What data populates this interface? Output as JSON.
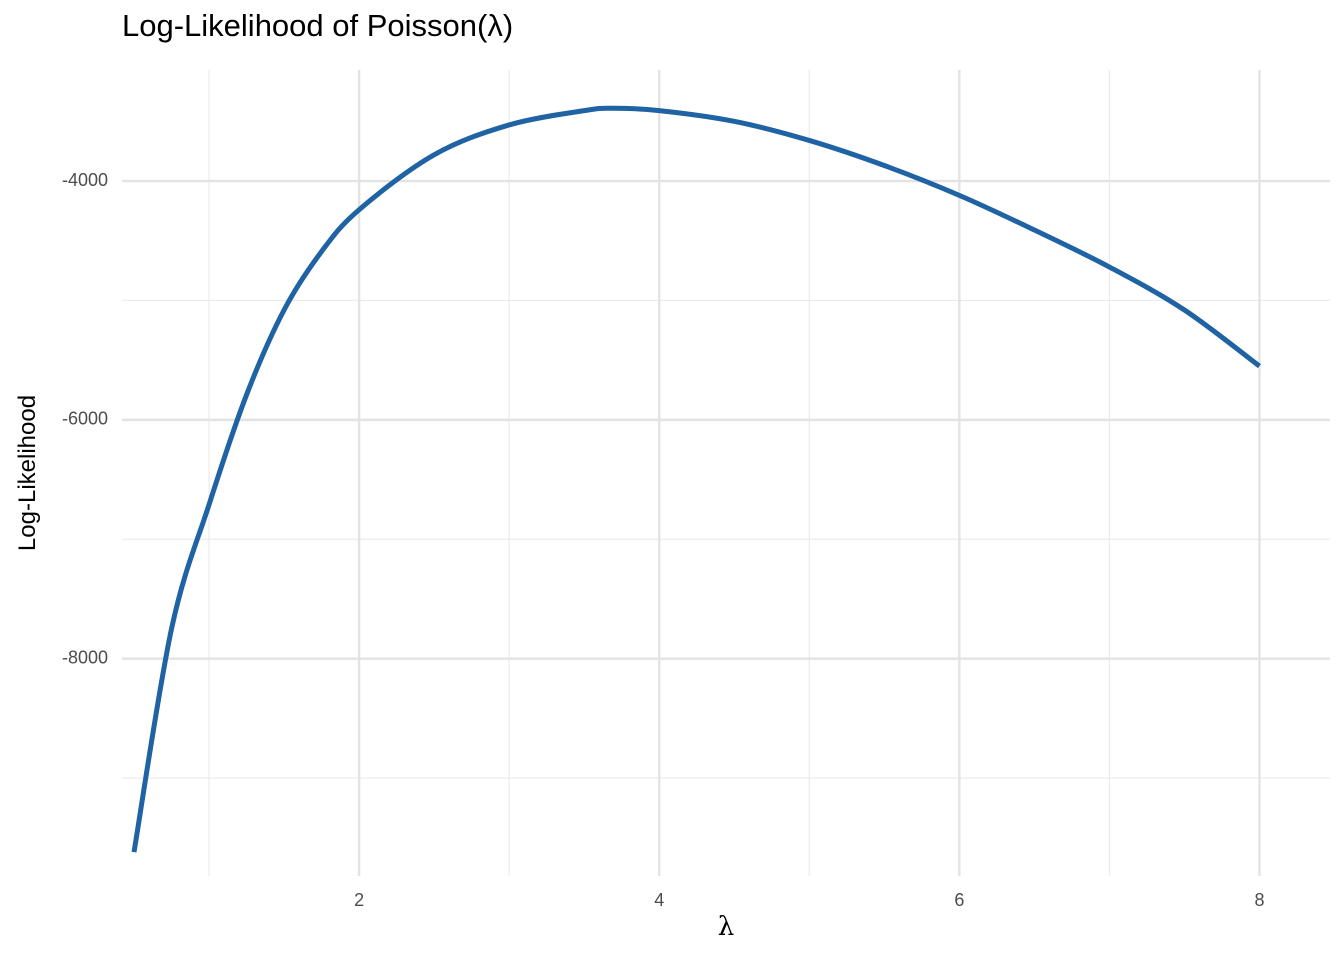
{
  "chart_data": {
    "type": "line",
    "title": "Log-Likelihood of Poisson(λ)",
    "xlabel": "λ",
    "ylabel": "Log-Likelihood",
    "xlim": [
      0.42,
      8.47
    ],
    "ylim": [
      -9820,
      -3070
    ],
    "x_ticks": [
      2,
      4,
      6,
      8
    ],
    "x_tick_labels": [
      "2",
      "4",
      "6",
      "8"
    ],
    "x_minor_ticks": [
      1,
      3,
      5,
      7
    ],
    "y_ticks": [
      -8000,
      -6000,
      -4000
    ],
    "y_tick_labels": [
      "-8000",
      "-6000",
      "-4000"
    ],
    "y_minor_ticks": [
      -9000,
      -7000,
      -5000
    ],
    "grid": true,
    "legend": "none",
    "line_color": "#1f63a4",
    "series": [
      {
        "x": [
          0.5,
          0.75,
          1.0,
          1.25,
          1.5,
          1.75,
          2.0,
          2.5,
          3.0,
          3.5,
          3.69,
          4.0,
          4.5,
          5.0,
          5.5,
          6.0,
          6.5,
          7.0,
          7.5,
          8.0
        ],
        "values": [
          -9620,
          -7750,
          -6710,
          -5790,
          -5080,
          -4590,
          -4240,
          -3780,
          -3530,
          -3410,
          -3390,
          -3410,
          -3500,
          -3660,
          -3870,
          -4120,
          -4410,
          -4720,
          -5080,
          -5550
        ]
      }
    ]
  }
}
